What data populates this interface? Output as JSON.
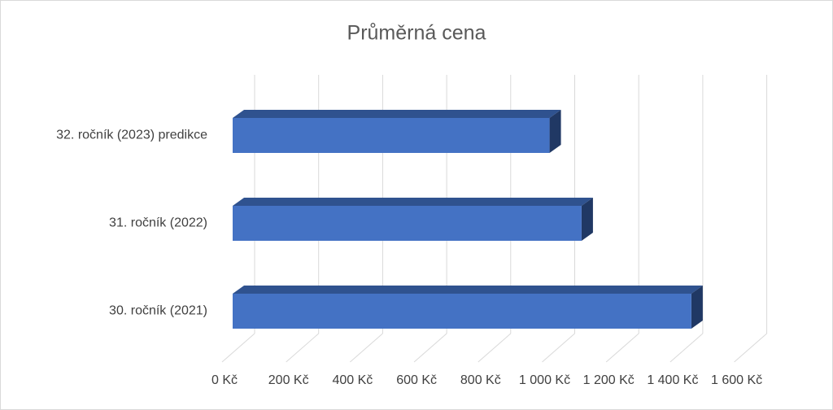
{
  "chart_data": {
    "type": "bar3d-horizontal",
    "title": "Průměrná cena",
    "categories": [
      "30. ročník (2021)",
      "31. ročník (2022)",
      "32. ročník (2023) predikce"
    ],
    "values": [
      1433,
      1090,
      990
    ],
    "color": "#4472c4",
    "xlim": [
      0,
      1600
    ],
    "xticks": [
      {
        "value": 0,
        "label": "0 Kč"
      },
      {
        "value": 200,
        "label": "200 Kč"
      },
      {
        "value": 400,
        "label": "400 Kč"
      },
      {
        "value": 600,
        "label": "600 Kč"
      },
      {
        "value": 800,
        "label": "800 Kč"
      },
      {
        "value": 1000,
        "label": "1 000 Kč"
      },
      {
        "value": 1200,
        "label": "1 200 Kč"
      },
      {
        "value": 1400,
        "label": "1 400 Kč"
      },
      {
        "value": 1600,
        "label": "1 600 Kč"
      }
    ],
    "grid": true
  }
}
